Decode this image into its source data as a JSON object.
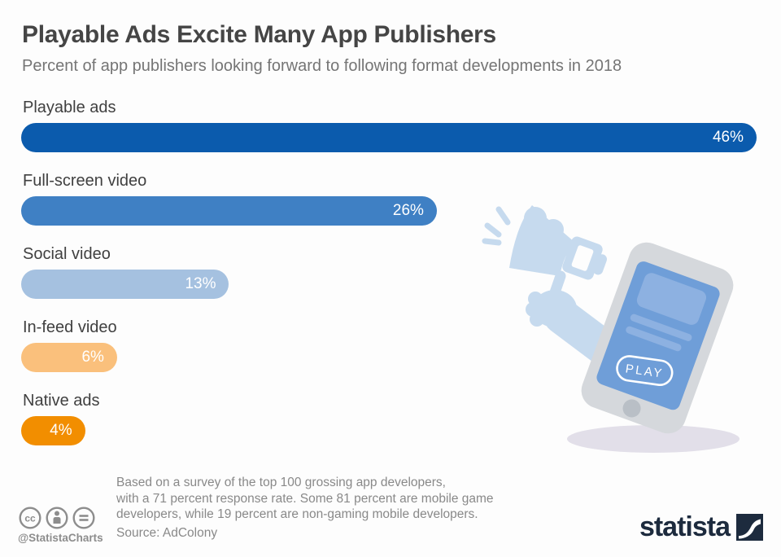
{
  "header": {
    "title": "Playable Ads Excite Many App Publishers",
    "subtitle": "Percent of app publishers looking forward to following format developments in 2018"
  },
  "chart_data": {
    "type": "bar",
    "orientation": "horizontal",
    "title": "Playable Ads Excite Many App Publishers",
    "subtitle": "Percent of app publishers looking forward to following format developments in 2018",
    "categories": [
      "Playable ads",
      "Full-screen video",
      "Social video",
      "In-feed video",
      "Native ads"
    ],
    "values": [
      46,
      26,
      13,
      6,
      4
    ],
    "value_suffix": "%",
    "xlim": [
      0,
      46
    ],
    "grid": false,
    "legend": false,
    "bar_colors": [
      "#0b5bad",
      "#3f80c4",
      "#a5c1e0",
      "#fac07c",
      "#f28e00"
    ],
    "value_label_color": "#ffffff"
  },
  "illustration": {
    "name": "megaphone-and-smartphone",
    "play_button_label": "PLAY",
    "colors": {
      "megaphone": "#c6daee",
      "phone_body": "#d5d8dc",
      "screen": "#6f9ed8",
      "screen_content": "#8db1e1",
      "home_button": "#b9bfc6",
      "shadow": "#e2dfe9"
    }
  },
  "footer": {
    "note_lines": [
      "Based on a survey of the top 100 grossing app developers,",
      "with a 71 percent response rate. Some 81 percent are mobile game",
      "developers, while 19 percent are non-gaming mobile developers."
    ],
    "source": "Source: AdColony",
    "attribution_handle": "@StatistaCharts",
    "license_icons": [
      "cc-icon",
      "cc-by-icon",
      "cc-nd-icon"
    ],
    "brand": "statista",
    "brand_color": "#1d2b3e"
  }
}
